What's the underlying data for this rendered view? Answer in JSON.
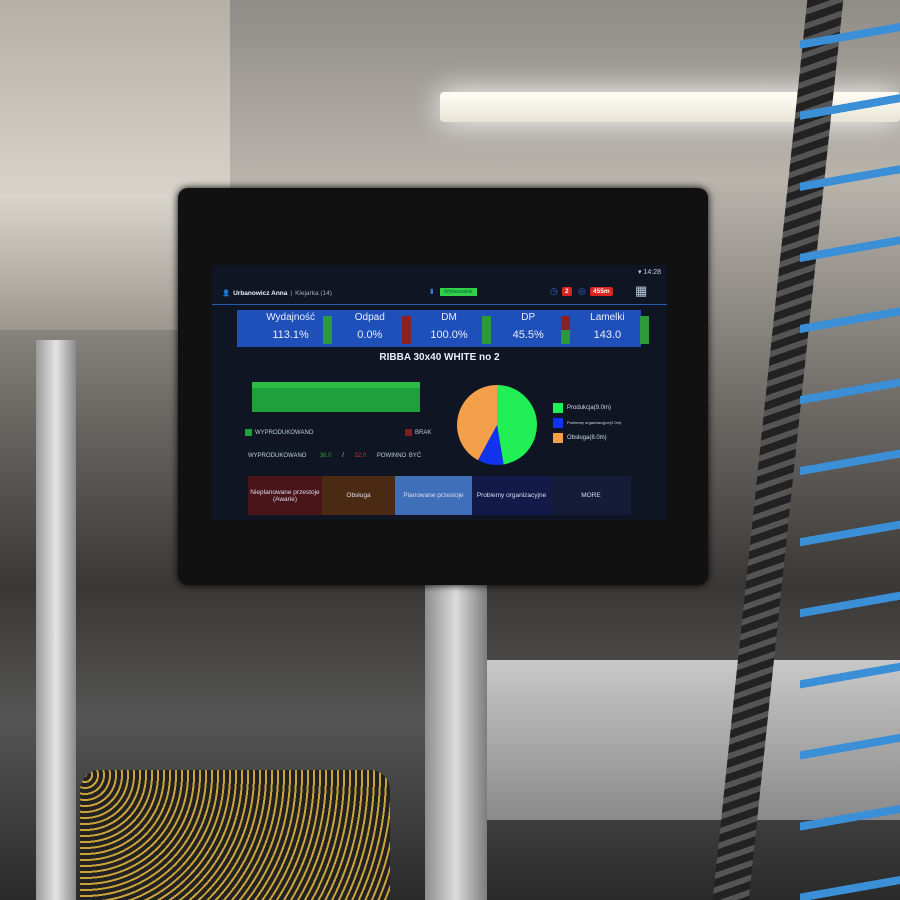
{
  "status": {
    "time": "14:28"
  },
  "header": {
    "user": "Urbanowicz Anna",
    "station": "Klejarka (14)",
    "mode_badge": "Wytwarzanie",
    "alerts_count": "2",
    "timer": "455m"
  },
  "kpis": [
    {
      "label": "Wydajność",
      "value": "113.1%",
      "indicator": "green"
    },
    {
      "label": "Odpad",
      "value": "0.0%",
      "indicator": "red"
    },
    {
      "label": "DM",
      "value": "100.0%",
      "indicator": "green"
    },
    {
      "label": "DP",
      "value": "45.5%",
      "indicator": "red-green"
    },
    {
      "label": "Lamelki",
      "value": "143.0",
      "indicator": "green"
    }
  ],
  "product_title": "RIBBA 30x40 WHITE no 2",
  "production": {
    "legend_produced": "WYPRODUKOWANO",
    "legend_missing": "BRAK",
    "produced_label": "WYPRODUKOWANO",
    "produced_value": "36.0",
    "separator": "/",
    "target_value": "32.0",
    "target_label": "POWINNO BYĆ"
  },
  "chart_data": {
    "type": "pie",
    "slices": [
      {
        "name": "Produkcja(9.0m)",
        "value": 9.0,
        "color": "#22ee55"
      },
      {
        "name": "Problemy organizacyjne(2.0m)",
        "value": 2.0,
        "color": "#1133ee"
      },
      {
        "name": "Obsługa(8.0m)",
        "value": 8.0,
        "color": "#f4a04a"
      }
    ]
  },
  "buttons": [
    {
      "label": "Nieplanowane przestoje (Awarie)",
      "color": "#4a1518"
    },
    {
      "label": "Obsługa",
      "color": "#4a2a12"
    },
    {
      "label": "Planowane przestoje",
      "color": "#3f6fb8"
    },
    {
      "label": "Problemy organizacyjne",
      "color": "#121a4a"
    },
    {
      "label": "MORE",
      "color": "#141c38"
    }
  ]
}
